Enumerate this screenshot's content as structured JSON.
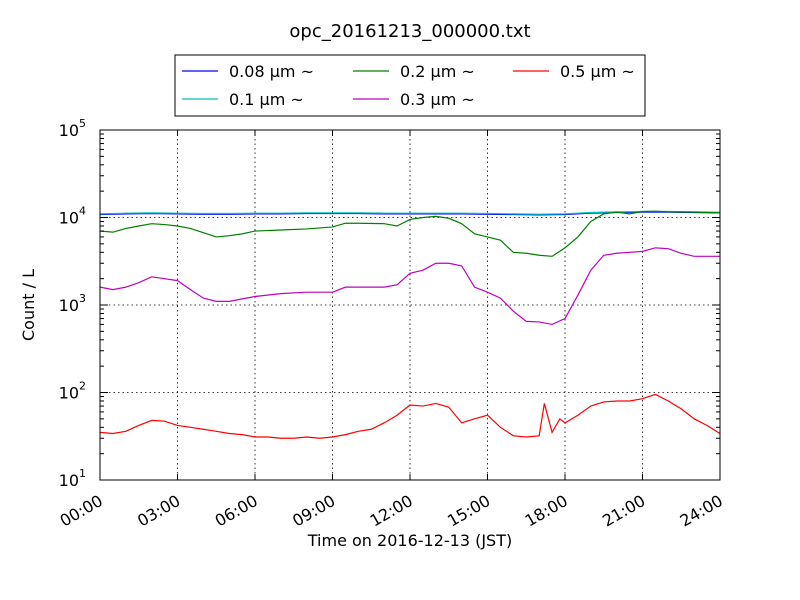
{
  "chart_data": {
    "type": "line",
    "title": "opc_20161213_000000.txt",
    "xlabel": "Time on 2016-12-13 (JST)",
    "ylabel": "Count / L",
    "x_unit": "hours",
    "xlim": [
      0,
      24
    ],
    "ylim": [
      10,
      100000
    ],
    "yscale": "log",
    "grid": true,
    "legend": "top-center",
    "xticks": [
      "00:00",
      "03:00",
      "06:00",
      "09:00",
      "12:00",
      "15:00",
      "18:00",
      "21:00",
      "24:00"
    ],
    "yticks": [
      {
        "base": "10",
        "exp": "1"
      },
      {
        "base": "10",
        "exp": "2"
      },
      {
        "base": "10",
        "exp": "3"
      },
      {
        "base": "10",
        "exp": "4"
      },
      {
        "base": "10",
        "exp": "5"
      }
    ],
    "series": [
      {
        "name": "0.08 μm ~",
        "color": "#0000ff",
        "x": [
          0,
          1,
          2,
          3,
          4,
          5,
          6,
          7,
          8,
          9,
          10,
          11,
          12,
          13,
          14,
          15,
          16,
          17,
          18,
          19,
          20,
          21,
          22,
          23,
          24
        ],
        "y": [
          10800,
          11000,
          11100,
          11000,
          10900,
          10900,
          11000,
          11000,
          11100,
          11100,
          11100,
          11000,
          11000,
          11000,
          11000,
          10900,
          10800,
          10700,
          10800,
          11200,
          11400,
          11500,
          11500,
          11400,
          11300
        ]
      },
      {
        "name": "0.1 μm ~",
        "color": "#00bfbf",
        "x": [
          0,
          1,
          2,
          3,
          4,
          5,
          6,
          7,
          8,
          9,
          10,
          11,
          12,
          13,
          14,
          15,
          16,
          17,
          18,
          19,
          20,
          21,
          22,
          23,
          24
        ],
        "y": [
          11000,
          11200,
          11300,
          11200,
          11100,
          11100,
          11200,
          11200,
          11300,
          11300,
          11300,
          11200,
          11200,
          11200,
          11200,
          11100,
          11000,
          10900,
          11000,
          11400,
          11600,
          11700,
          11700,
          11600,
          11500
        ]
      },
      {
        "name": "0.2 μm ~",
        "color": "#008000",
        "x": [
          0,
          0.5,
          1,
          1.5,
          2,
          2.5,
          3,
          3.5,
          4,
          4.5,
          5,
          5.5,
          6,
          7,
          8,
          9,
          9.5,
          10,
          11,
          11.5,
          12,
          12.5,
          13,
          13.5,
          14,
          14.5,
          15,
          15.5,
          16,
          16.5,
          17,
          17.5,
          18,
          18.5,
          19,
          19.5,
          20,
          20.5,
          21,
          21.5,
          22,
          23,
          24
        ],
        "y": [
          7000,
          6800,
          7500,
          8000,
          8500,
          8300,
          8000,
          7500,
          6700,
          6000,
          6200,
          6500,
          7000,
          7200,
          7400,
          7800,
          8600,
          8600,
          8500,
          8000,
          9500,
          10000,
          10300,
          9800,
          8500,
          6500,
          6000,
          5500,
          4000,
          3900,
          3700,
          3600,
          4500,
          6000,
          9000,
          11000,
          11500,
          11000,
          11700,
          11800,
          11600,
          11500,
          11300
        ]
      },
      {
        "name": "0.3 μm ~",
        "color": "#bf00bf",
        "x": [
          0,
          0.5,
          1,
          1.5,
          2,
          2.5,
          3,
          3.5,
          4,
          4.5,
          5,
          6,
          7,
          8,
          9,
          9.5,
          10,
          11,
          11.5,
          12,
          12.5,
          13,
          13.5,
          14,
          14.5,
          15,
          15.5,
          16,
          16.5,
          17,
          17.5,
          18,
          18.5,
          19,
          19.5,
          20,
          20.5,
          21,
          21.5,
          22,
          22.5,
          23,
          24
        ],
        "y": [
          1600,
          1500,
          1600,
          1800,
          2100,
          2000,
          1900,
          1500,
          1200,
          1100,
          1100,
          1250,
          1350,
          1400,
          1400,
          1600,
          1600,
          1600,
          1700,
          2300,
          2500,
          3000,
          3000,
          2800,
          1600,
          1400,
          1200,
          850,
          650,
          640,
          600,
          700,
          1300,
          2500,
          3700,
          3900,
          4000,
          4100,
          4500,
          4400,
          3900,
          3600,
          3600
        ]
      },
      {
        "name": "0.5 μm ~",
        "color": "#ff0000",
        "x": [
          0,
          0.5,
          1,
          1.5,
          2,
          2.5,
          3,
          3.5,
          4,
          4.5,
          5,
          5.5,
          6,
          6.5,
          7,
          7.5,
          8,
          8.5,
          9,
          9.5,
          10,
          10.5,
          11,
          11.5,
          12,
          12.5,
          13,
          13.5,
          14,
          14.5,
          15,
          15.5,
          16,
          16.5,
          17,
          17.2,
          17.5,
          17.8,
          18,
          18.5,
          19,
          19.5,
          20,
          20.5,
          21,
          21.5,
          22,
          22.5,
          23,
          23.5,
          24
        ],
        "y": [
          35,
          34,
          36,
          42,
          48,
          47,
          42,
          40,
          38,
          36,
          34,
          33,
          31,
          31,
          30,
          30,
          31,
          30,
          31,
          33,
          36,
          38,
          45,
          55,
          72,
          70,
          75,
          68,
          45,
          50,
          55,
          40,
          32,
          31,
          32,
          75,
          35,
          50,
          45,
          55,
          70,
          78,
          80,
          80,
          85,
          95,
          80,
          65,
          50,
          42,
          34
        ]
      }
    ]
  }
}
